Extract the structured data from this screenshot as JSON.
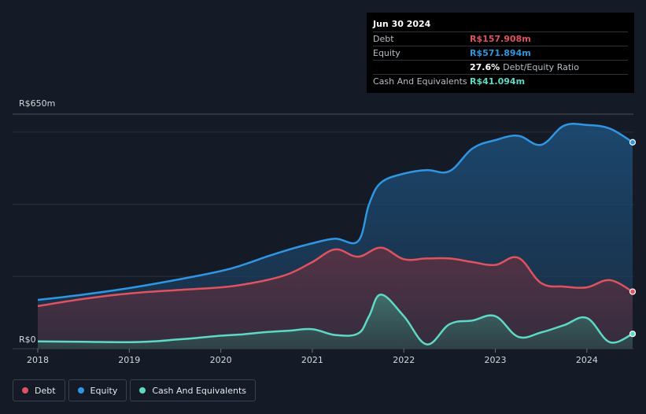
{
  "tooltip": {
    "date": "Jun 30 2024",
    "debt_label": "Debt",
    "debt_value": "R$157.908m",
    "equity_label": "Equity",
    "equity_value": "R$571.894m",
    "ratio_value": "27.6%",
    "ratio_label": "Debt/Equity Ratio",
    "cash_label": "Cash And Equivalents",
    "cash_value": "R$41.094m"
  },
  "legend": {
    "debt": "Debt",
    "equity": "Equity",
    "cash": "Cash And Equivalents"
  },
  "colors": {
    "debt": "#e05260",
    "equity": "#2f96e3",
    "cash": "#5ed9c5",
    "background": "#151b26"
  },
  "chart_data": {
    "type": "area",
    "title": "",
    "xlabel": "",
    "ylabel": "",
    "y_top_label": "R$650m",
    "y_bottom_label": "R$0",
    "ylim": [
      0,
      650
    ],
    "xlim": [
      2018,
      2024.5
    ],
    "x_ticks": [
      2018,
      2019,
      2020,
      2021,
      2022,
      2023,
      2024
    ],
    "x_tick_labels": [
      "2018",
      "2019",
      "2020",
      "2021",
      "2022",
      "2023",
      "2024"
    ],
    "grid_y": [
      0,
      200,
      400,
      600
    ],
    "series": [
      {
        "name": "Equity",
        "key": "equity",
        "points": [
          [
            2018.0,
            135
          ],
          [
            2018.5,
            150
          ],
          [
            2019.0,
            168
          ],
          [
            2019.5,
            190
          ],
          [
            2020.0,
            215
          ],
          [
            2020.25,
            233
          ],
          [
            2020.5,
            255
          ],
          [
            2020.75,
            275
          ],
          [
            2021.0,
            292
          ],
          [
            2021.25,
            305
          ],
          [
            2021.5,
            298
          ],
          [
            2021.62,
            400
          ],
          [
            2021.75,
            460
          ],
          [
            2022.0,
            485
          ],
          [
            2022.25,
            495
          ],
          [
            2022.5,
            492
          ],
          [
            2022.75,
            555
          ],
          [
            2023.0,
            578
          ],
          [
            2023.25,
            590
          ],
          [
            2023.5,
            565
          ],
          [
            2023.75,
            618
          ],
          [
            2024.0,
            620
          ],
          [
            2024.25,
            610
          ],
          [
            2024.5,
            572
          ]
        ]
      },
      {
        "name": "Debt",
        "key": "debt",
        "points": [
          [
            2018.0,
            118
          ],
          [
            2018.5,
            138
          ],
          [
            2019.0,
            153
          ],
          [
            2019.5,
            162
          ],
          [
            2020.0,
            170
          ],
          [
            2020.25,
            178
          ],
          [
            2020.5,
            190
          ],
          [
            2020.75,
            208
          ],
          [
            2021.0,
            240
          ],
          [
            2021.25,
            275
          ],
          [
            2021.5,
            255
          ],
          [
            2021.75,
            280
          ],
          [
            2022.0,
            248
          ],
          [
            2022.25,
            250
          ],
          [
            2022.5,
            250
          ],
          [
            2022.75,
            240
          ],
          [
            2023.0,
            232
          ],
          [
            2023.25,
            252
          ],
          [
            2023.5,
            182
          ],
          [
            2023.75,
            172
          ],
          [
            2024.0,
            170
          ],
          [
            2024.25,
            190
          ],
          [
            2024.5,
            158
          ]
        ]
      },
      {
        "name": "Cash And Equivalents",
        "key": "cash",
        "points": [
          [
            2018.0,
            20
          ],
          [
            2018.5,
            19
          ],
          [
            2019.0,
            18
          ],
          [
            2019.25,
            20
          ],
          [
            2019.5,
            25
          ],
          [
            2019.75,
            30
          ],
          [
            2020.0,
            36
          ],
          [
            2020.25,
            40
          ],
          [
            2020.5,
            46
          ],
          [
            2020.75,
            50
          ],
          [
            2021.0,
            54
          ],
          [
            2021.25,
            38
          ],
          [
            2021.5,
            42
          ],
          [
            2021.62,
            90
          ],
          [
            2021.75,
            150
          ],
          [
            2022.0,
            90
          ],
          [
            2022.25,
            12
          ],
          [
            2022.5,
            68
          ],
          [
            2022.75,
            78
          ],
          [
            2023.0,
            90
          ],
          [
            2023.25,
            33
          ],
          [
            2023.5,
            45
          ],
          [
            2023.75,
            65
          ],
          [
            2024.0,
            85
          ],
          [
            2024.25,
            18
          ],
          [
            2024.5,
            41
          ]
        ]
      }
    ]
  }
}
